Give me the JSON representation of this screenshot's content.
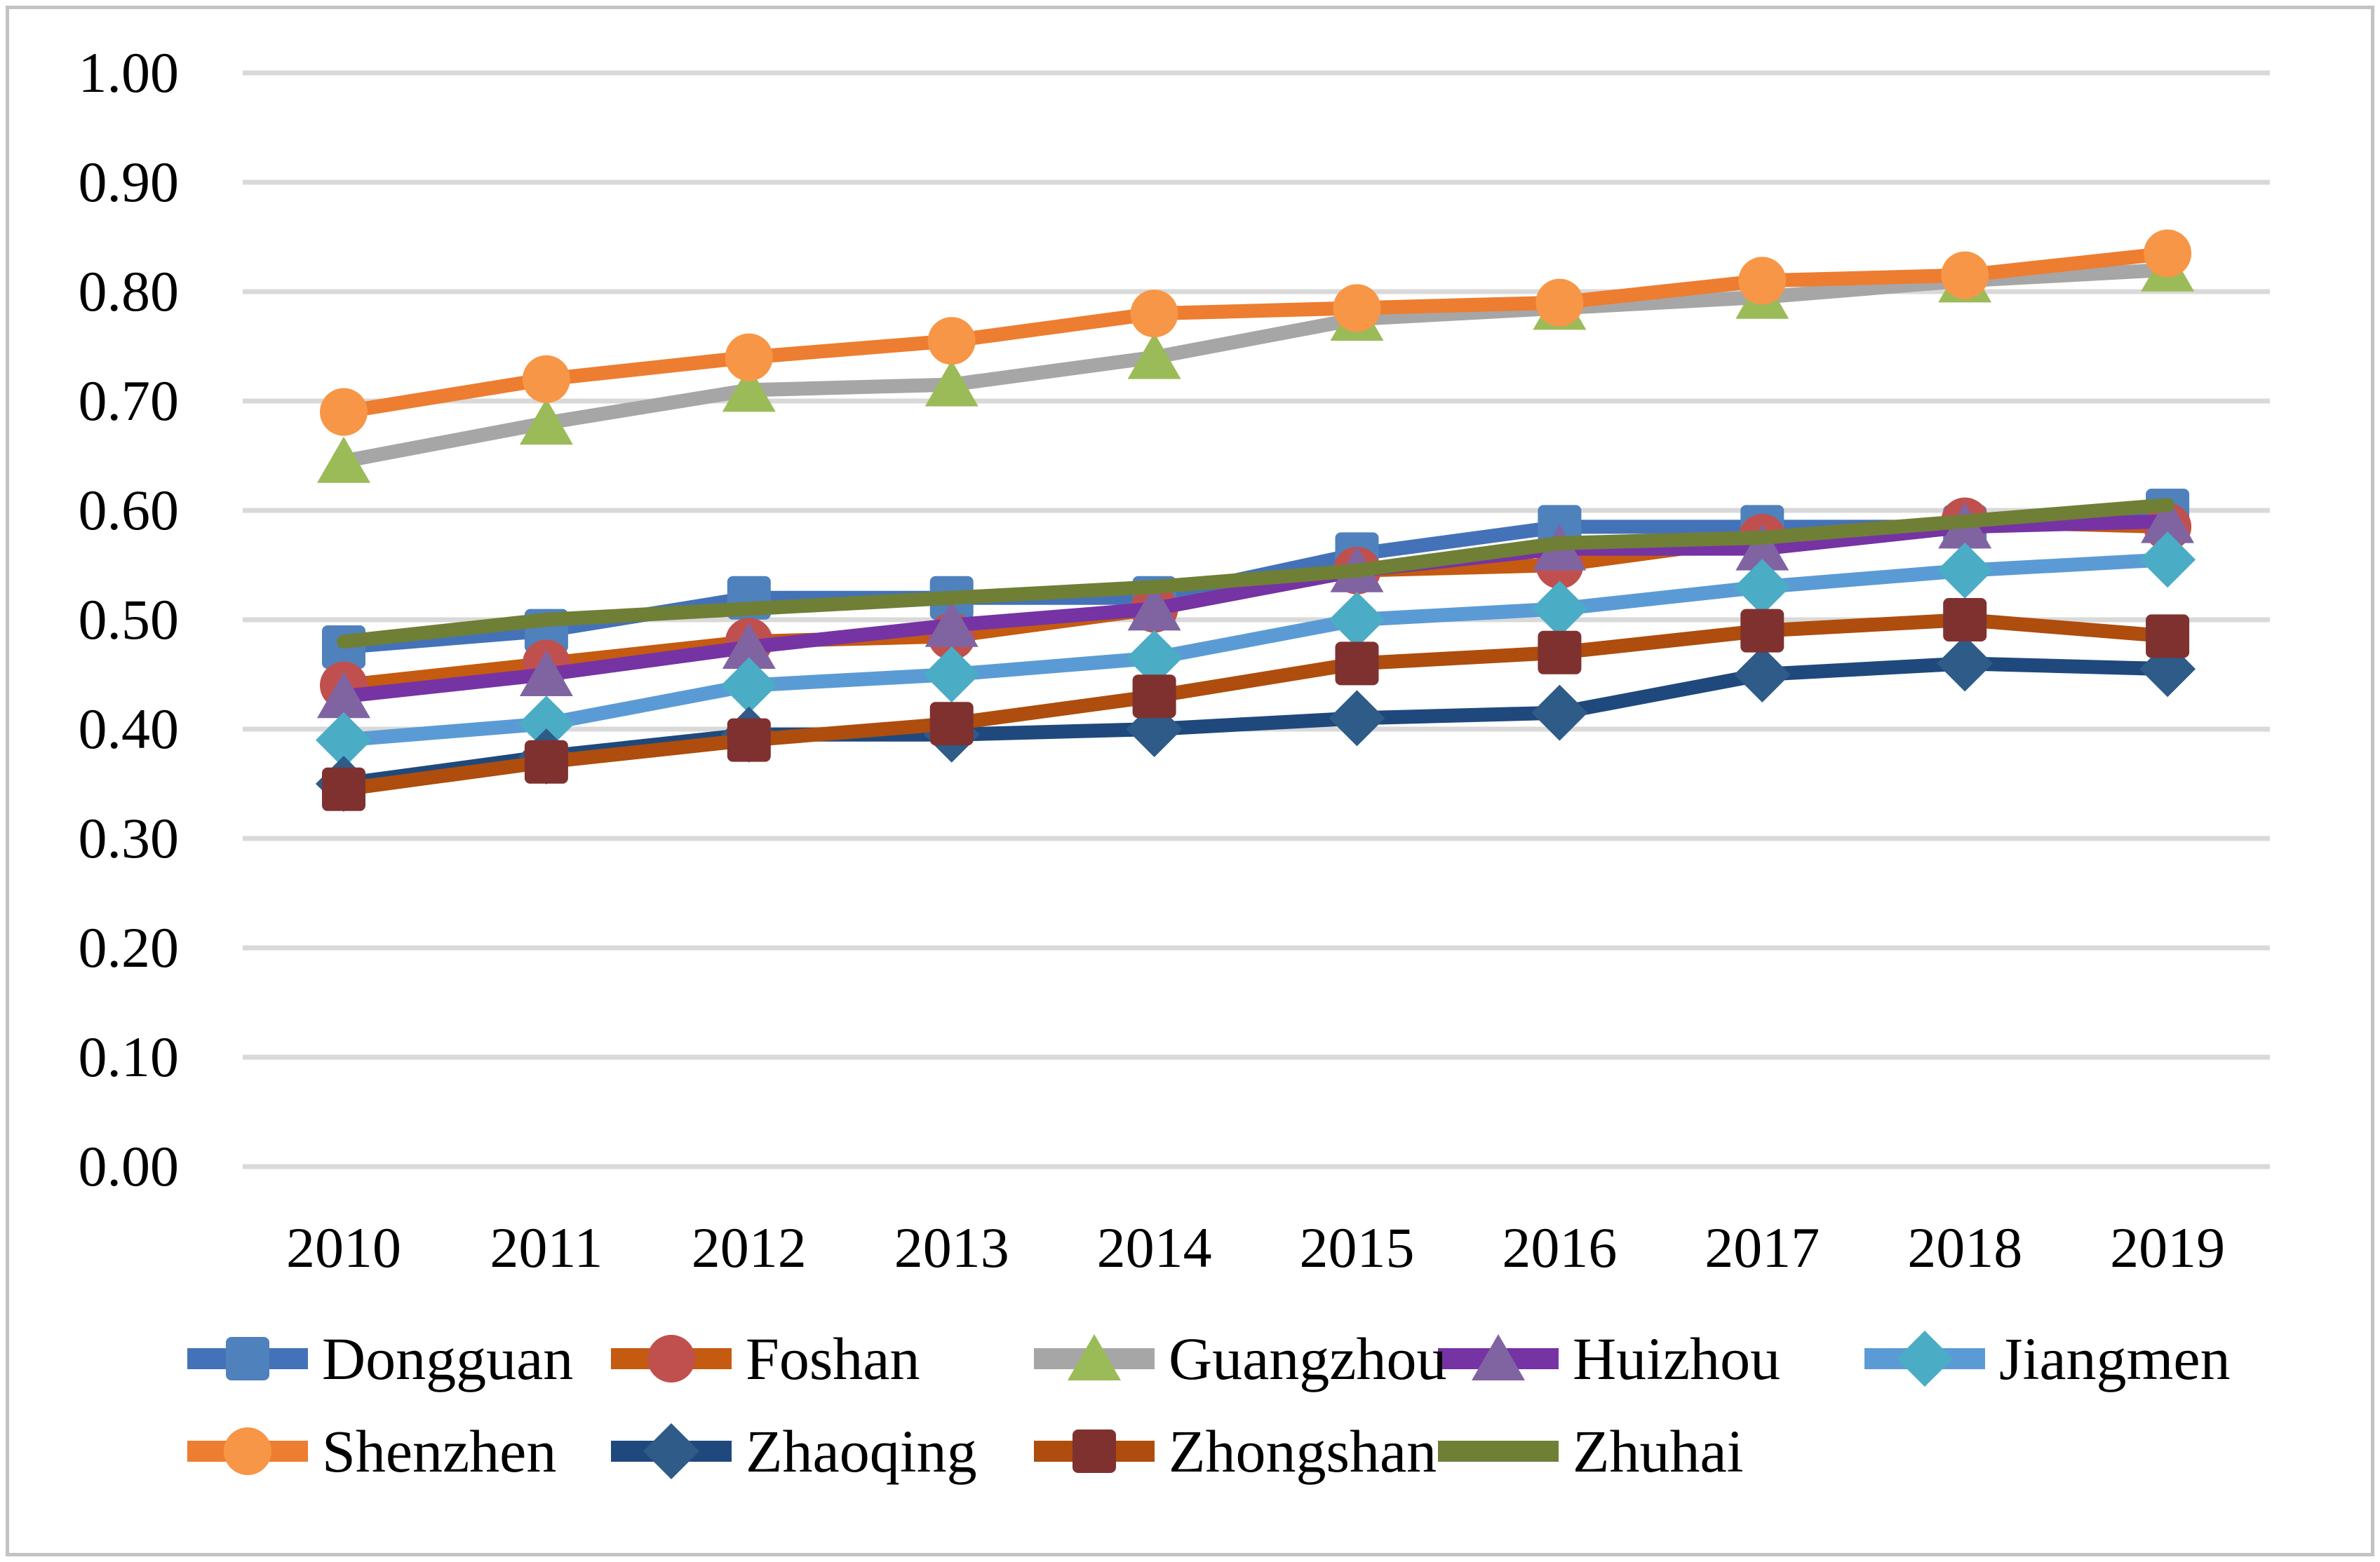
{
  "chart_data": {
    "type": "line",
    "title": "",
    "xlabel": "",
    "ylabel": "",
    "categories": [
      "2010",
      "2011",
      "2012",
      "2013",
      "2014",
      "2015",
      "2016",
      "2017",
      "2018",
      "2019"
    ],
    "y_ticks": [
      "1.00",
      "0.90",
      "0.80",
      "0.70",
      "0.60",
      "0.50",
      "0.40",
      "0.30",
      "0.20",
      "0.10",
      "0.00"
    ],
    "ylim": [
      0.0,
      1.0
    ],
    "grid": true,
    "gridline_color": "#d9d9d9",
    "frame_color": "#c3c3c3",
    "legend_position": "bottom",
    "series": [
      {
        "name": "Dongguan",
        "marker": "square",
        "line_color": "#4472b8",
        "marker_color": "#4f81bd",
        "values": [
          0.475,
          0.49,
          0.52,
          0.52,
          0.52,
          0.56,
          0.585,
          0.585,
          0.585,
          0.6
        ]
      },
      {
        "name": "Foshan",
        "marker": "circle",
        "line_color": "#c55a11",
        "marker_color": "#c0504d",
        "values": [
          0.44,
          0.46,
          0.48,
          0.485,
          0.51,
          0.545,
          0.55,
          0.575,
          0.59,
          0.585
        ]
      },
      {
        "name": "Guangzhou",
        "marker": "triangle",
        "line_color": "#a6a6a6",
        "marker_color": "#9bbb59",
        "values": [
          0.645,
          0.68,
          0.71,
          0.715,
          0.74,
          0.775,
          0.785,
          0.795,
          0.81,
          0.82
        ]
      },
      {
        "name": "Huizhou",
        "marker": "triangle",
        "line_color": "#7633a4",
        "marker_color": "#8064a2",
        "values": [
          0.43,
          0.45,
          0.475,
          0.495,
          0.51,
          0.545,
          0.565,
          0.565,
          0.585,
          0.59
        ]
      },
      {
        "name": "Jiangmen",
        "marker": "diamond",
        "line_color": "#5b9bd5",
        "marker_color": "#4bacc6",
        "values": [
          0.39,
          0.405,
          0.44,
          0.45,
          0.465,
          0.5,
          0.51,
          0.53,
          0.545,
          0.555
        ]
      },
      {
        "name": "Shenzhen",
        "marker": "circle",
        "line_color": "#ed7d31",
        "marker_color": "#f79646",
        "values": [
          0.69,
          0.72,
          0.74,
          0.755,
          0.78,
          0.785,
          0.79,
          0.81,
          0.815,
          0.835
        ]
      },
      {
        "name": "Zhaoqing",
        "marker": "diamond",
        "line_color": "#1f497d",
        "marker_color": "#2e5b88",
        "values": [
          0.35,
          0.375,
          0.395,
          0.395,
          0.4,
          0.41,
          0.415,
          0.45,
          0.46,
          0.455
        ]
      },
      {
        "name": "Zhongshan",
        "marker": "square",
        "line_color": "#ae4d0d",
        "marker_color": "#7f3130",
        "values": [
          0.345,
          0.37,
          0.39,
          0.405,
          0.43,
          0.46,
          0.47,
          0.49,
          0.5,
          0.485
        ]
      },
      {
        "name": "Zhuhai",
        "marker": "none",
        "line_color": "#6f7f36",
        "marker_color": "#6f7f36",
        "values": [
          0.48,
          0.5,
          0.51,
          0.52,
          0.53,
          0.545,
          0.57,
          0.575,
          0.59,
          0.605
        ]
      }
    ],
    "legend_rows": [
      [
        "Dongguan",
        "Foshan",
        "Guangzhou",
        "Huizhou",
        "Jiangmen"
      ],
      [
        "Shenzhen",
        "Zhaoqing",
        "Zhongshan",
        "Zhuhai"
      ]
    ]
  }
}
